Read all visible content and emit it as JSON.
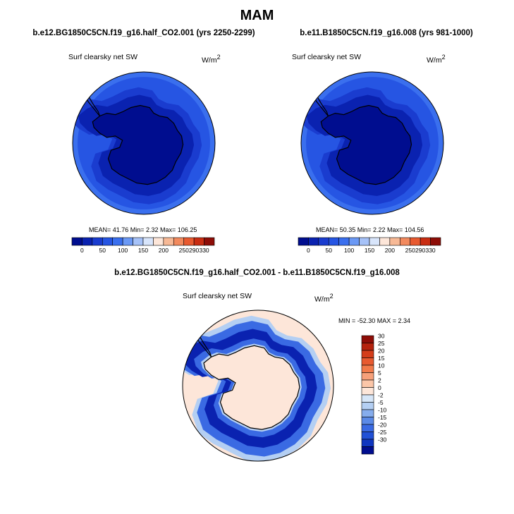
{
  "page": {
    "title": "MAM"
  },
  "panels": [
    {
      "case": "b.e12.BG1850C5CN.f19_g16.half_CO2.001 (yrs 2250-2299)",
      "variable": "Surf clearsky net SW",
      "units": "W/m",
      "units_exp": "2",
      "stats": "MEAN= 41.76  Min=  2.32  Max= 106.25",
      "colorbar": {
        "colors": [
          "#000d8f",
          "#0a22b0",
          "#1a3ccf",
          "#2655e3",
          "#3a6fee",
          "#6b99f5",
          "#a6c2f8",
          "#d8e5fb",
          "#fde6d9",
          "#f7b996",
          "#f28a5e",
          "#e85a30",
          "#c92d12",
          "#8e0d07"
        ],
        "tick_labels": [
          "0",
          "50",
          "100",
          "150",
          "200",
          "250",
          "290",
          "330"
        ],
        "ticks_at_boundary": [
          1,
          3,
          5,
          7,
          9,
          11,
          12,
          13
        ]
      }
    },
    {
      "case": "b.e11.B1850C5CN.f19_g16.008 (yrs 981-1000)",
      "variable": "Surf clearsky net SW",
      "units": "W/m",
      "units_exp": "2",
      "stats": "MEAN= 50.35  Min=  2.22  Max= 104.56",
      "colorbar": {
        "colors": [
          "#000d8f",
          "#0a22b0",
          "#1a3ccf",
          "#2655e3",
          "#3a6fee",
          "#6b99f5",
          "#a6c2f8",
          "#d8e5fb",
          "#fde6d9",
          "#f7b996",
          "#f28a5e",
          "#e85a30",
          "#c92d12",
          "#8e0d07"
        ],
        "tick_labels": [
          "0",
          "50",
          "100",
          "150",
          "200",
          "250",
          "290",
          "330"
        ],
        "ticks_at_boundary": [
          1,
          3,
          5,
          7,
          9,
          11,
          12,
          13
        ]
      }
    }
  ],
  "diff_panel": {
    "case": "b.e12.BG1850C5CN.f19_g16.half_CO2.001 - b.e11.B1850C5CN.f19_g16.008",
    "variable": "Surf clearsky net SW",
    "units": "W/m",
    "units_exp": "2",
    "stats": "MIN = -52.30 MAX =   2.34",
    "colorbar": {
      "colors_top_to_bottom": [
        "#8e0d07",
        "#b5220d",
        "#d43d1a",
        "#e85a30",
        "#f27a4a",
        "#f7a07a",
        "#fbc6a8",
        "#fde6d9",
        "#d6e6f8",
        "#b4cff3",
        "#86aded",
        "#5b8ae7",
        "#3a6ae3",
        "#2050d6",
        "#0f36c0",
        "#000d8f"
      ],
      "labels_top_to_bottom": [
        "30",
        "25",
        "20",
        "15",
        "10",
        "5",
        "2",
        "0",
        "-2",
        "-5",
        "-10",
        "-15",
        "-20",
        "-25",
        "-30"
      ]
    }
  },
  "map_colors": {
    "ice_sheet": "#000d8f",
    "ring_inner": "#0a22b0",
    "ring_mid": "#1a3ccf",
    "ring_outer": "#2655e3",
    "ocean_edge": "#3a6fee",
    "diff_background": "#fde6d9",
    "diff_ring_dark": "#0a22b0",
    "diff_ring_light": "#3a6ae3",
    "diff_fringe": "#b4cff3",
    "coast": "#000000"
  }
}
